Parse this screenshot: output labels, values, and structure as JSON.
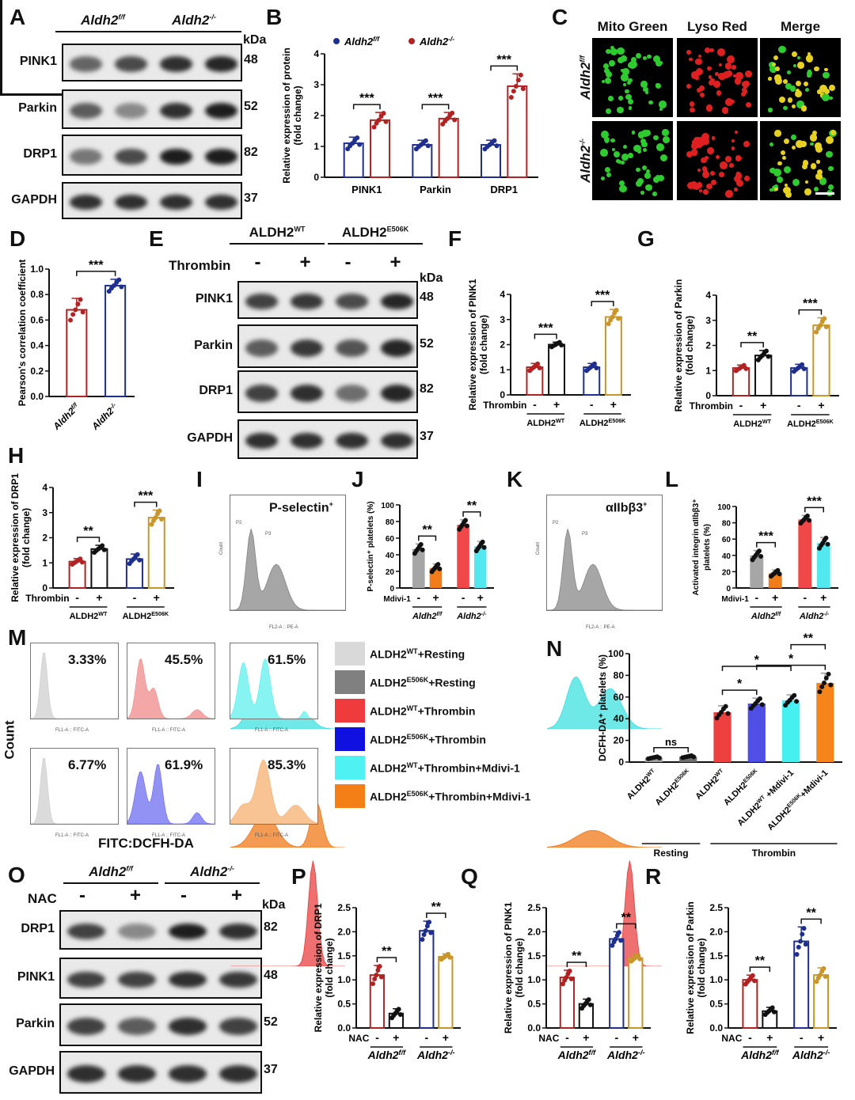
{
  "panel_letters": [
    "A",
    "B",
    "C",
    "D",
    "E",
    "F",
    "G",
    "H",
    "I",
    "J",
    "K",
    "L",
    "M",
    "N",
    "O",
    "P",
    "Q",
    "R"
  ],
  "blots": {
    "A": {
      "headers": [
        {
          "t": "Aldh2",
          "sup": "f/f"
        },
        {
          "t": "Aldh2",
          "sup": "-/-"
        }
      ],
      "kda_label": "kDa",
      "lanes": 4,
      "rows": [
        {
          "label": "PINK1",
          "kda": "48",
          "int": [
            0.55,
            0.7,
            0.85,
            0.9
          ]
        },
        {
          "label": "Parkin",
          "kda": "52",
          "int": [
            0.6,
            0.35,
            0.85,
            0.95
          ]
        },
        {
          "label": "DRP1",
          "kda": "82",
          "int": [
            0.45,
            0.7,
            0.95,
            0.95
          ]
        },
        {
          "label": "GAPDH",
          "kda": "37",
          "int": [
            0.85,
            0.85,
            0.85,
            0.85
          ]
        }
      ]
    },
    "E": {
      "headers": [
        {
          "t": "ALDH2",
          "sup": "WT"
        },
        {
          "t": "ALDH2",
          "sup": "E506K"
        }
      ],
      "treat_label": "Thrombin",
      "signs": [
        "-",
        "+",
        "-",
        "+"
      ],
      "kda_label": "kDa",
      "lanes": 4,
      "rows": [
        {
          "label": "PINK1",
          "kda": "48",
          "int": [
            0.75,
            0.8,
            0.7,
            0.9
          ]
        },
        {
          "label": "Parkin",
          "kda": "52",
          "int": [
            0.6,
            0.8,
            0.65,
            0.9
          ]
        },
        {
          "label": "DRP1",
          "kda": "82",
          "int": [
            0.75,
            0.85,
            0.5,
            0.9
          ]
        },
        {
          "label": "GAPDH",
          "kda": "37",
          "int": [
            0.85,
            0.85,
            0.85,
            0.85
          ]
        }
      ]
    },
    "O": {
      "headers": [
        {
          "t": "Aldh2",
          "sup": "f/f"
        },
        {
          "t": "Aldh2",
          "sup": "-/-"
        }
      ],
      "treat_label": "NAC",
      "signs": [
        "-",
        "+",
        "-",
        "+"
      ],
      "kda_label": "kDa",
      "lanes": 4,
      "rows": [
        {
          "label": "DRP1",
          "kda": "82",
          "int": [
            0.75,
            0.35,
            0.95,
            0.85
          ]
        },
        {
          "label": "PINK1",
          "kda": "48",
          "int": [
            0.75,
            0.75,
            0.85,
            0.8
          ]
        },
        {
          "label": "Parkin",
          "kda": "52",
          "int": [
            0.75,
            0.6,
            0.85,
            0.75
          ]
        },
        {
          "label": "GAPDH",
          "kda": "37",
          "int": [
            0.85,
            0.85,
            0.85,
            0.85
          ]
        }
      ]
    }
  },
  "microscopy": {
    "columns": [
      "Mito Green",
      "Lyso Red",
      "Merge"
    ],
    "rows": [
      {
        "t": "Aldh2",
        "sup": "f/f"
      },
      {
        "t": "Aldh2",
        "sup": "-/-"
      }
    ]
  },
  "flow_I": {
    "title": "P-selectin",
    "sup": "+",
    "xaxis": "FL2-A :: PE-A",
    "yaxis": "Count",
    "gates": [
      "P2",
      "P3"
    ]
  },
  "flow_K": {
    "title": "αIIbβ3",
    "sup": "+",
    "xaxis": "FL2-A :: PE-A",
    "yaxis": "Count",
    "gates": [
      "P2",
      "P3"
    ]
  },
  "flow_M": {
    "xaxis_title": "FITC:DCFH-DA",
    "yaxis_title": "Count",
    "xaxis": "FL1-A :: FITC-A",
    "plots": [
      {
        "pct": "3.33%",
        "color": "#cfcfcf"
      },
      {
        "pct": "45.5%",
        "color": "#f08a8a"
      },
      {
        "pct": "61.5%",
        "color": "#5ff0ee"
      },
      {
        "pct": "6.77%",
        "color": "#cfcfcf"
      },
      {
        "pct": "61.9%",
        "color": "#6e6ef0"
      },
      {
        "pct": "85.3%",
        "color": "#f5b070"
      }
    ],
    "legend": [
      {
        "t": "ALDH2",
        "sup": "WT",
        "t2": "+Resting",
        "color": "#d9d9d9"
      },
      {
        "t": "ALDH2",
        "sup": "E506K",
        "t2": "+Resting",
        "color": "#808080"
      },
      {
        "t": "ALDH2",
        "sup": "WT",
        "t2": "+Thrombin",
        "color": "#ef3b3b"
      },
      {
        "t": "ALDH2",
        "sup": "E506K",
        "t2": "+Thrombin",
        "color": "#1010e0"
      },
      {
        "t": "ALDH2",
        "sup": "WT",
        "t2": "+Thrombin+Mdivi-1",
        "color": "#4ff2f2"
      },
      {
        "t": "ALDH2",
        "sup": "E506K",
        "t2": "+Thrombin+Mdivi-1",
        "color": "#f57f17"
      }
    ]
  },
  "chart_data": [
    {
      "id": "B",
      "type": "bar",
      "ylabel": [
        "Relative expression of protein",
        "(fold change)"
      ],
      "ylim": [
        0,
        4
      ],
      "yticks": [
        0,
        1,
        2,
        3,
        4
      ],
      "group_size": 2,
      "style": "outline",
      "legend": [
        {
          "t": "Aldh2",
          "sup": "f/f",
          "color": "#1f2f8f"
        },
        {
          "t": "Aldh2",
          "sup": "-/-",
          "color": "#b22222"
        }
      ],
      "categories": [
        "PINK1",
        "Parkin",
        "DRP1"
      ],
      "bars": [
        {
          "v": 1.1,
          "sd": 0.2,
          "c": "#1f2f8f"
        },
        {
          "v": 1.85,
          "sd": 0.25,
          "c": "#b22222"
        },
        {
          "v": 1.05,
          "sd": 0.15,
          "c": "#1f2f8f"
        },
        {
          "v": 1.9,
          "sd": 0.2,
          "c": "#b22222"
        },
        {
          "v": 1.05,
          "sd": 0.15,
          "c": "#1f2f8f"
        },
        {
          "v": 2.95,
          "sd": 0.4,
          "c": "#b22222"
        }
      ],
      "brackets": [
        [
          0,
          1,
          "***",
          0
        ],
        [
          2,
          3,
          "***",
          0
        ],
        [
          4,
          5,
          "***",
          0
        ]
      ]
    },
    {
      "id": "D",
      "type": "bar",
      "ylabel": [
        "Pearson's correlation coefficient"
      ],
      "ylim": [
        0,
        1
      ],
      "yticks": [
        "0.0",
        "0.2",
        "0.4",
        "0.6",
        "0.8",
        "1.0"
      ],
      "group_size": 1,
      "style": "outline",
      "xticks_rot": [
        {
          "t": "Aldh2",
          "sup": "f/f",
          "it": true
        },
        {
          "t": "Aldh2",
          "sup": "-/-",
          "it": true
        }
      ],
      "bars": [
        {
          "v": 0.68,
          "sd": 0.09,
          "c": "#b22222"
        },
        {
          "v": 0.87,
          "sd": 0.05,
          "c": "#1f2f8f"
        }
      ],
      "brackets": [
        [
          0,
          1,
          "***",
          0
        ]
      ]
    },
    {
      "id": "F",
      "type": "bar",
      "ylabel": [
        "Relative expression of PINK1",
        "(fold change)"
      ],
      "ylim": [
        0,
        4
      ],
      "yticks": [
        0,
        1,
        2,
        3,
        4
      ],
      "group_size": 2,
      "style": "outline",
      "sign_label": "Thrombin",
      "signs": [
        "-",
        "+",
        "-",
        "+"
      ],
      "groups": [
        {
          "t": "ALDH2",
          "sup": "WT"
        },
        {
          "t": "ALDH2",
          "sup": "E506K"
        }
      ],
      "bars": [
        {
          "v": 1.1,
          "sd": 0.15,
          "c": "#b22222"
        },
        {
          "v": 2.0,
          "sd": 0.1,
          "c": "#111111"
        },
        {
          "v": 1.1,
          "sd": 0.15,
          "c": "#1f2f8f"
        },
        {
          "v": 3.1,
          "sd": 0.3,
          "c": "#c8962b"
        }
      ],
      "brackets": [
        [
          0,
          1,
          "***",
          0
        ],
        [
          2,
          3,
          "***",
          0
        ]
      ]
    },
    {
      "id": "G",
      "type": "bar",
      "ylabel": [
        "Relative expression of Parkin",
        "(fold change)"
      ],
      "ylim": [
        0,
        4
      ],
      "yticks": [
        0,
        1,
        2,
        3,
        4
      ],
      "group_size": 2,
      "style": "outline",
      "sign_label": "Thrombin",
      "signs": [
        "-",
        "+",
        "-",
        "+"
      ],
      "groups": [
        {
          "t": "ALDH2",
          "sup": "WT"
        },
        {
          "t": "ALDH2",
          "sup": "E506K"
        }
      ],
      "bars": [
        {
          "v": 1.1,
          "sd": 0.12,
          "c": "#b22222"
        },
        {
          "v": 1.6,
          "sd": 0.2,
          "c": "#111111"
        },
        {
          "v": 1.1,
          "sd": 0.15,
          "c": "#1f2f8f"
        },
        {
          "v": 2.8,
          "sd": 0.3,
          "c": "#c8962b"
        }
      ],
      "brackets": [
        [
          0,
          1,
          "**",
          0
        ],
        [
          2,
          3,
          "***",
          0
        ]
      ]
    },
    {
      "id": "H",
      "type": "bar",
      "ylabel": [
        "Relative expression of DRP1",
        "(fold change)"
      ],
      "ylim": [
        0,
        4
      ],
      "yticks": [
        0,
        1,
        2,
        3,
        4
      ],
      "group_size": 2,
      "style": "outline",
      "sign_label": "Thrombin",
      "signs": [
        "-",
        "+",
        "-",
        "+"
      ],
      "groups": [
        {
          "t": "ALDH2",
          "sup": "WT"
        },
        {
          "t": "ALDH2",
          "sup": "E506K"
        }
      ],
      "bars": [
        {
          "v": 1.05,
          "sd": 0.12,
          "c": "#b22222"
        },
        {
          "v": 1.55,
          "sd": 0.15,
          "c": "#111111"
        },
        {
          "v": 1.15,
          "sd": 0.2,
          "c": "#1f2f8f"
        },
        {
          "v": 2.8,
          "sd": 0.3,
          "c": "#c8962b"
        }
      ],
      "brackets": [
        [
          0,
          1,
          "**",
          0
        ],
        [
          2,
          3,
          "***",
          0
        ]
      ]
    },
    {
      "id": "J",
      "type": "bar",
      "ylabel": [
        "P-selectin⁺ platelets (%)"
      ],
      "ylim": [
        0,
        100
      ],
      "yticks": [
        0,
        20,
        40,
        60,
        80,
        100
      ],
      "group_size": 2,
      "style": "filled",
      "small": true,
      "sign_label": "Mdivi-1",
      "signs": [
        "-",
        "+",
        "-",
        "+"
      ],
      "groups": [
        {
          "t": "Aldh2",
          "sup": "f/f",
          "it": true
        },
        {
          "t": "Aldh2",
          "sup": "-/-",
          "it": true
        }
      ],
      "bars": [
        {
          "v": 47,
          "sd": 6,
          "c": "#a6a6a6"
        },
        {
          "v": 24,
          "sd": 5,
          "c": "#f07d1a"
        },
        {
          "v": 76,
          "sd": 6,
          "c": "#f04848"
        },
        {
          "v": 50,
          "sd": 6,
          "c": "#52e8f0"
        }
      ],
      "brackets": [
        [
          0,
          1,
          "**",
          0
        ],
        [
          2,
          3,
          "**",
          0
        ]
      ]
    },
    {
      "id": "L",
      "type": "bar",
      "ylabel": [
        "Activated integrin αIIbβ3⁺",
        "platelets (%)"
      ],
      "ylim": [
        0,
        100
      ],
      "yticks": [
        0,
        20,
        40,
        60,
        80,
        100
      ],
      "group_size": 2,
      "style": "filled",
      "small": true,
      "sign_label": "Mdivi-1",
      "signs": [
        "-",
        "+",
        "-",
        "+"
      ],
      "groups": [
        {
          "t": "Aldh2",
          "sup": "f/f",
          "it": true
        },
        {
          "t": "Aldh2",
          "sup": "-/-",
          "it": true
        }
      ],
      "bars": [
        {
          "v": 40,
          "sd": 6,
          "c": "#a6a6a6"
        },
        {
          "v": 18,
          "sd": 4,
          "c": "#f07d1a"
        },
        {
          "v": 84,
          "sd": 5,
          "c": "#f04848"
        },
        {
          "v": 55,
          "sd": 7,
          "c": "#52e8f0"
        }
      ],
      "brackets": [
        [
          0,
          1,
          "***",
          0
        ],
        [
          2,
          3,
          "***",
          0
        ]
      ]
    },
    {
      "id": "N",
      "type": "bar",
      "ylabel": [
        "DCFH-DA⁺ platelets (%)"
      ],
      "ylim": [
        0,
        100
      ],
      "yticks": [
        0,
        20,
        40,
        60,
        80,
        100
      ],
      "group_size": 1,
      "style": "filled",
      "xticks_rot": [
        {
          "t": "ALDH2",
          "sup": "WT"
        },
        {
          "t": "ALDH2",
          "sup": "E506K"
        },
        {
          "t": "ALDH2",
          "sup": "WT"
        },
        {
          "t": "ALDH2",
          "sup": "E506K"
        },
        {
          "t": "ALDH2",
          "sup": "WT",
          "t2": " +Mdivi-1"
        },
        {
          "t": "ALDH2",
          "sup": "E506K",
          "t2": "+Mdivi-1"
        }
      ],
      "spans": [
        {
          "t": "Resting",
          "from": 0,
          "to": 1
        },
        {
          "t": "Thrombin",
          "from": 2,
          "to": 5
        }
      ],
      "bars": [
        {
          "v": 4,
          "sd": 1,
          "c": "#9e9e9e"
        },
        {
          "v": 5,
          "sd": 1,
          "c": "#6e6e6e"
        },
        {
          "v": 46,
          "sd": 6,
          "c": "#ef4040"
        },
        {
          "v": 54,
          "sd": 5,
          "c": "#4f4fe6"
        },
        {
          "v": 57,
          "sd": 5,
          "c": "#47f0f0"
        },
        {
          "v": 73,
          "sd": 9,
          "c": "#f5851a"
        }
      ],
      "brackets": [
        [
          0,
          1,
          "ns",
          0
        ],
        [
          2,
          3,
          "*",
          0
        ],
        [
          3,
          5,
          "*",
          0
        ],
        [
          2,
          4,
          "*",
          1
        ],
        [
          4,
          5,
          "**",
          1
        ]
      ]
    },
    {
      "id": "P",
      "type": "bar",
      "ylabel": [
        "Relative expression of DRP1",
        "(fold change)"
      ],
      "ylim": [
        0,
        2.5
      ],
      "yticks": [
        "0.0",
        "0.5",
        "1.0",
        "1.5",
        "2.0",
        "2.5"
      ],
      "group_size": 2,
      "style": "outline",
      "sign_label": "NAC",
      "signs": [
        "-",
        "+",
        "-",
        "+"
      ],
      "groups": [
        {
          "t": "Aldh2",
          "sup": "f/f",
          "it": true
        },
        {
          "t": "Aldh2",
          "sup": "-/-",
          "it": true
        }
      ],
      "bars": [
        {
          "v": 1.1,
          "sd": 0.2,
          "c": "#b22222"
        },
        {
          "v": 0.3,
          "sd": 0.1,
          "c": "#111111"
        },
        {
          "v": 2.02,
          "sd": 0.2,
          "c": "#1f2f8f"
        },
        {
          "v": 1.48,
          "sd": 0.06,
          "c": "#c8962b"
        }
      ],
      "brackets": [
        [
          0,
          1,
          "**",
          0
        ],
        [
          2,
          3,
          "**",
          0
        ]
      ]
    },
    {
      "id": "Q",
      "type": "bar",
      "ylabel": [
        "Relative expression of PINK1",
        "(fold change)"
      ],
      "ylim": [
        0,
        2.5
      ],
      "yticks": [
        "0.0",
        "0.5",
        "1.0",
        "1.5",
        "2.0",
        "2.5"
      ],
      "group_size": 2,
      "style": "outline",
      "sign_label": "NAC",
      "signs": [
        "-",
        "+",
        "-",
        "+"
      ],
      "groups": [
        {
          "t": "Aldh2",
          "sup": "f/f",
          "it": true
        },
        {
          "t": "Aldh2",
          "sup": "-/-",
          "it": true
        }
      ],
      "bars": [
        {
          "v": 1.05,
          "sd": 0.15,
          "c": "#b22222"
        },
        {
          "v": 0.5,
          "sd": 0.1,
          "c": "#111111"
        },
        {
          "v": 1.85,
          "sd": 0.15,
          "c": "#1f2f8f"
        },
        {
          "v": 1.45,
          "sd": 0.07,
          "c": "#c8962b"
        }
      ],
      "brackets": [
        [
          0,
          1,
          "**",
          0
        ],
        [
          2,
          3,
          "**",
          0
        ]
      ]
    },
    {
      "id": "R",
      "type": "bar",
      "ylabel": [
        "Relative expression of Parkin",
        "(fold change)"
      ],
      "ylim": [
        0,
        2.5
      ],
      "yticks": [
        "0.0",
        "0.5",
        "1.0",
        "1.5",
        "2.0",
        "2.5"
      ],
      "group_size": 2,
      "style": "outline",
      "sign_label": "NAC",
      "signs": [
        "-",
        "+",
        "-",
        "+"
      ],
      "groups": [
        {
          "t": "Aldh2",
          "sup": "f/f",
          "it": true
        },
        {
          "t": "Aldh2",
          "sup": "-/-",
          "it": true
        }
      ],
      "bars": [
        {
          "v": 1.0,
          "sd": 0.1,
          "c": "#b22222"
        },
        {
          "v": 0.35,
          "sd": 0.08,
          "c": "#111111"
        },
        {
          "v": 1.8,
          "sd": 0.3,
          "c": "#1f2f8f"
        },
        {
          "v": 1.1,
          "sd": 0.15,
          "c": "#c8962b"
        }
      ],
      "brackets": [
        [
          0,
          1,
          "**",
          0
        ],
        [
          2,
          3,
          "**",
          0
        ]
      ]
    }
  ]
}
